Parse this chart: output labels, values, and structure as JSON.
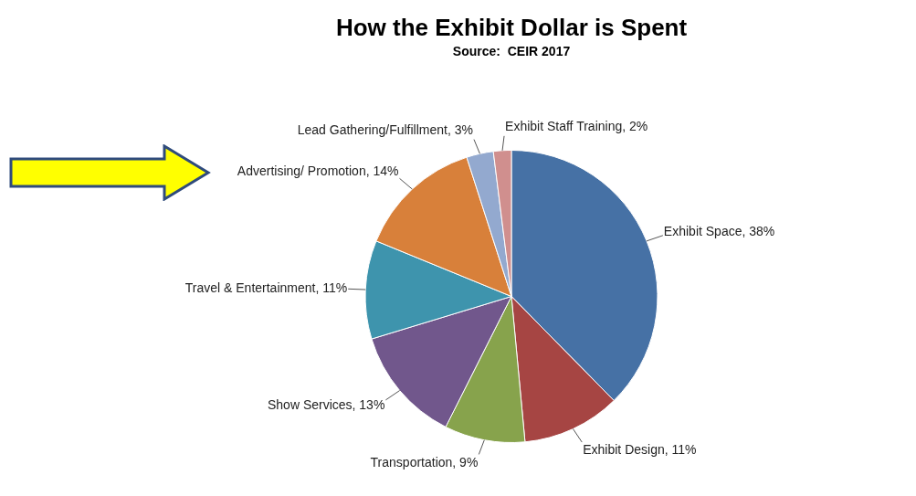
{
  "chart_data": {
    "type": "pie",
    "title": "How the Exhibit Dollar is Spent",
    "subtitle": "Source:  CEIR 2017",
    "categories": [
      "Exhibit Space",
      "Exhibit Design",
      "Transportation",
      "Show Services",
      "Travel & Entertainment",
      "Advertising/ Promotion",
      "Lead Gathering/Fulfillment",
      "Exhibit Staff Training"
    ],
    "values": [
      38,
      11,
      9,
      13,
      11,
      14,
      3,
      2
    ],
    "value_labels": [
      "38%",
      "11%",
      "9%",
      "13%",
      "11%",
      "14%",
      "3%",
      "2%"
    ],
    "colors": [
      "#4671a5",
      "#a64543",
      "#87a34c",
      "#71578c",
      "#3e94ad",
      "#d8803a",
      "#93a9cf",
      "#d08f8e"
    ],
    "legend": false
  }
}
